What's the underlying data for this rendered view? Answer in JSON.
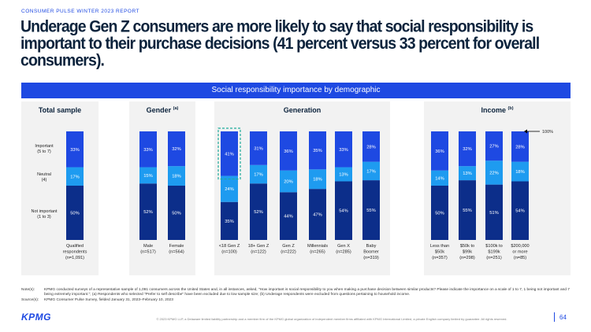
{
  "header": {
    "report_label": "CONSUMER PULSE WINTER 2023 REPORT",
    "headline": "Underage Gen Z consumers are more likely to say that social responsibility is important to their purchase decisions (41 percent versus 33 percent for overall consumers)."
  },
  "chart_data": {
    "type": "bar",
    "stacked": true,
    "title": "Social responsibility importance by demographic",
    "value_unit": "%",
    "ylim": [
      0,
      100
    ],
    "top_marker_label": "100%",
    "stack_order": [
      "Not important (1 to 3)",
      "Neutral (4)",
      "Important (5 to 7)"
    ],
    "legend": [
      {
        "line1": "Important",
        "line2": "(5 to 7)"
      },
      {
        "line1": "Neutral",
        "line2": "(4)"
      },
      {
        "line1": "Not important",
        "line2": "(1 to 3)"
      }
    ],
    "colors": {
      "not_important": "#0c2e8a",
      "neutral": "#1e9bf0",
      "important": "#1e49e2",
      "highlight_border": "#1dab9a",
      "panel_bg": "#f2f2f2"
    },
    "groups": [
      {
        "title": "Total sample",
        "title_note": "",
        "bars": [
          {
            "label": [
              "Qualified",
              "respondents",
              "(n=1,091)"
            ],
            "not_important": 50,
            "neutral": 17,
            "important": 33
          }
        ]
      },
      {
        "title": "Gender",
        "title_note": "(a)",
        "bars": [
          {
            "label": [
              "Male",
              "(n=517)"
            ],
            "not_important": 52,
            "neutral": 15,
            "important": 33
          },
          {
            "label": [
              "Female",
              "(n=564)"
            ],
            "not_important": 50,
            "neutral": 18,
            "important": 32
          }
        ]
      },
      {
        "title": "Generation",
        "title_note": "",
        "bars": [
          {
            "label": [
              "<18 Gen Z",
              "(n=100)"
            ],
            "not_important": 35,
            "neutral": 24,
            "important": 41,
            "highlight": true
          },
          {
            "label": [
              "18+ Gen Z",
              "(n=122)"
            ],
            "not_important": 52,
            "neutral": 17,
            "important": 31
          },
          {
            "label": [
              "Gen Z",
              "(n=222)"
            ],
            "not_important": 44,
            "neutral": 20,
            "important": 36
          },
          {
            "label": [
              "Millennials",
              "(n=265)"
            ],
            "not_important": 47,
            "neutral": 18,
            "important": 35
          },
          {
            "label": [
              "Gen X",
              "(n=285)"
            ],
            "not_important": 54,
            "neutral": 13,
            "important": 33
          },
          {
            "label": [
              "Baby",
              "Boomer",
              "(n=319)"
            ],
            "not_important": 55,
            "neutral": 17,
            "important": 28
          }
        ]
      },
      {
        "title": "Income",
        "title_note": "(b)",
        "bars": [
          {
            "label": [
              "Less than",
              "$50k",
              "(n=357)"
            ],
            "not_important": 50,
            "neutral": 14,
            "important": 36
          },
          {
            "label": [
              "$50k to",
              "$99k",
              "(n=298)"
            ],
            "not_important": 55,
            "neutral": 13,
            "important": 32
          },
          {
            "label": [
              "$100k to",
              "$199k",
              "(n=251)"
            ],
            "not_important": 51,
            "neutral": 22,
            "important": 27
          },
          {
            "label": [
              "$200,000",
              "or more",
              "(n=85)"
            ],
            "not_important": 54,
            "neutral": 18,
            "important": 28
          }
        ]
      }
    ]
  },
  "notes": {
    "notes_key": "Note(s):",
    "notes_text": "KPMG conducted surveys of a representative sample of 1,091 consumers across the United States and, in all instances, asked, \"How important is social responsibility to you when making a purchase decision between similar products? Please indicate the importance on a scale of 1 to 7, 1 being not important and 7 being extremely important.\"; (a) Respondents who selected \"Prefer to self describe\" have been excluded due to low sample size; (b) Underage respondents were excluded from questions pertaining to household income.",
    "source_key": "Source(s):",
    "source_text": "KPMG Consumer Pulse Survey, fielded January 31, 2023–February 10, 2023"
  },
  "footer": {
    "logo": "KPMG",
    "copyright": "© 2023 KPMG LLP, a Delaware limited liability partnership and a member firm of the KPMG global organization of independent member firms affiliated with KPMG International Limited, a private English company limited by guarantee. All rights reserved.",
    "page_number": "64"
  }
}
